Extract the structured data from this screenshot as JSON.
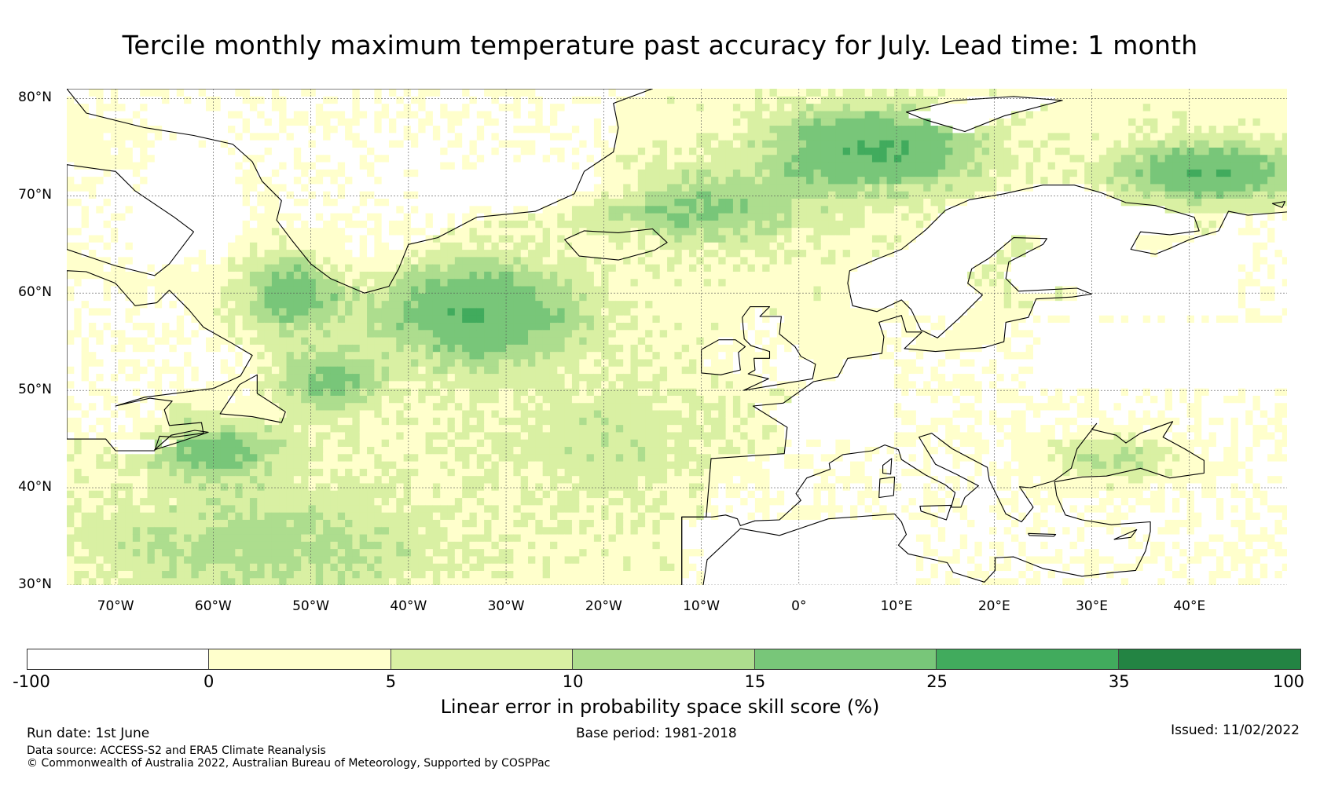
{
  "title": "Tercile monthly maximum temperature past accuracy for July. Lead time: 1 month",
  "map": {
    "lat_labels": [
      "80°N",
      "70°N",
      "60°N",
      "50°N",
      "40°N",
      "30°N"
    ],
    "lat_values": [
      80,
      70,
      60,
      50,
      40,
      30
    ],
    "lon_labels": [
      "70°W",
      "60°W",
      "50°W",
      "40°W",
      "30°W",
      "20°W",
      "10°W",
      "0°",
      "10°E",
      "20°E",
      "30°E",
      "40°E"
    ],
    "lon_values": [
      -70,
      -60,
      -50,
      -40,
      -30,
      -20,
      -10,
      0,
      10,
      20,
      30,
      40
    ],
    "lon_range": [
      -75,
      50
    ],
    "lat_range": [
      30,
      81
    ],
    "grid": true
  },
  "colorbar": {
    "title": "Linear error in probability space skill score (%)",
    "ticks": [
      "-100",
      "0",
      "5",
      "10",
      "15",
      "25",
      "35",
      "100"
    ],
    "colors": [
      "#ffffff",
      "#ffffcc",
      "#d9f0a3",
      "#addd8e",
      "#78c679",
      "#41ab5d",
      "#238443"
    ]
  },
  "footer": {
    "run_date": "Run date: 1st June",
    "base_period": "Base period: 1981-2018",
    "issued": "Issued: 11/02/2022",
    "data_source": "Data source: ACCESS-S2 and ERA5 Climate Reanalysis",
    "copyright": "© Commonwealth of Australia 2022, Australian Bureau of Meteorology, Supported by COSPPac"
  }
}
